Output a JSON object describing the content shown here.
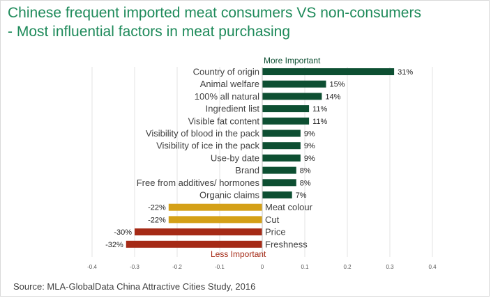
{
  "title": {
    "line1": "Chinese frequent imported meat consumers VS non-consumers",
    "line2": "- Most influential factors in meat purchasing"
  },
  "source": "Source: MLA-GlobalData China Attractive Cities Study, 2016",
  "chart_data": {
    "type": "bar",
    "orientation": "horizontal",
    "categories": [
      "Country of origin",
      "Animal welfare",
      "100% all natural",
      "Ingredient list",
      "Visible fat content",
      "Visibility of blood in the pack",
      "Visibility of ice in the pack",
      "Use-by date",
      "Brand",
      "Free from additives/ hormones",
      "Organic claims",
      "Meat colour",
      "Cut",
      "Price",
      "Freshness"
    ],
    "values": [
      0.31,
      0.15,
      0.14,
      0.11,
      0.11,
      0.09,
      0.09,
      0.09,
      0.08,
      0.08,
      0.07,
      -0.22,
      -0.22,
      -0.3,
      -0.32
    ],
    "data_labels": [
      "31%",
      "15%",
      "14%",
      "11%",
      "11%",
      "9%",
      "9%",
      "9%",
      "8%",
      "8%",
      "7%",
      "-22%",
      "-22%",
      "-30%",
      "-32%"
    ],
    "colors": [
      "#0d4f32",
      "#0d4f32",
      "#0d4f32",
      "#0d4f32",
      "#0d4f32",
      "#0d4f32",
      "#0d4f32",
      "#0d4f32",
      "#0d4f32",
      "#0d4f32",
      "#0d4f32",
      "#d4a017",
      "#d4a017",
      "#a52a16",
      "#a52a16"
    ],
    "xlim": [
      -0.4,
      0.4
    ],
    "xticks": [
      "-0.4",
      "-0.3",
      "-0.2",
      "-0.1",
      "0",
      "0.1",
      "0.2",
      "0.3",
      "0.4"
    ],
    "annotations": {
      "top": "More Important",
      "bottom": "Less Important"
    },
    "annotation_colors": {
      "top": "#0d4f32",
      "bottom": "#a52a16"
    },
    "grid": true,
    "legend": "none"
  }
}
